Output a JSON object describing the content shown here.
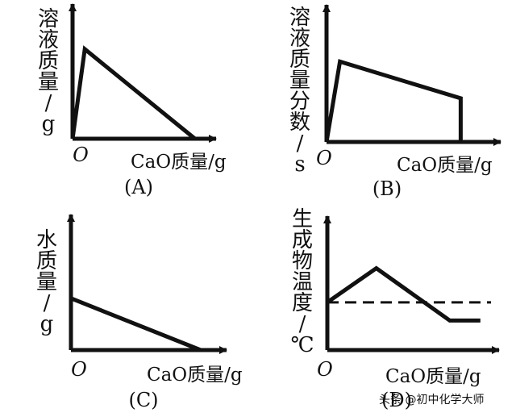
{
  "chart_data": [
    {
      "id": "A",
      "type": "line",
      "caption": "(A)",
      "ylabel": "溶液质量/g",
      "xlabel": "CaO质量/g",
      "origin": "O",
      "x": [
        0,
        0.1,
        1.0
      ],
      "y": [
        0,
        0.92,
        0
      ],
      "xlim": [
        0,
        1.12
      ],
      "ylim": [
        0,
        1.35
      ]
    },
    {
      "id": "B",
      "type": "line",
      "caption": "(B)",
      "ylabel": "溶液质量分数/s",
      "xlabel": "CaO质量/g",
      "origin": "O",
      "x": [
        0,
        0.1,
        1.0,
        1.0
      ],
      "y": [
        0,
        0.81,
        0.44,
        0
      ],
      "xlim": [
        0,
        1.25
      ],
      "ylim": [
        0,
        1.35
      ]
    },
    {
      "id": "C",
      "type": "line",
      "caption": "(C)",
      "ylabel": "水质量/g",
      "xlabel": "CaO质量/g",
      "origin": "O",
      "x": [
        0,
        1.0
      ],
      "y": [
        0.45,
        0
      ],
      "xlim": [
        0,
        1.15
      ],
      "ylim": [
        0,
        1.15
      ]
    },
    {
      "id": "D",
      "type": "line",
      "caption": "(D)",
      "ylabel": "生成物温度/℃",
      "xlabel": "CaO质量/g",
      "origin": "O",
      "x": [
        0,
        0.32,
        0.8,
        1.0
      ],
      "y": [
        0.42,
        0.72,
        0.26,
        0.26
      ],
      "reference_line": {
        "y": 0.42,
        "style": "dashed"
      },
      "xlim": [
        0,
        1.08
      ],
      "ylim": [
        0,
        1.15
      ]
    }
  ],
  "watermark": "头条 @初中化学大师"
}
